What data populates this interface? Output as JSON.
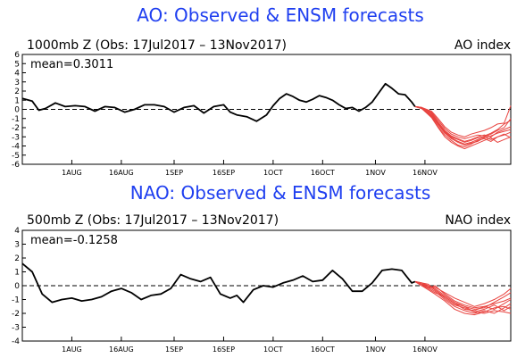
{
  "chart_data": [
    {
      "type": "line",
      "title": "AO: Observed & ENSM forecasts",
      "subtitle": "1000mb Z (Obs: 17Jul2017 – 13Nov2017)",
      "index_label": "AO index",
      "mean_label": "mean=0.3011",
      "ylim": [
        -6,
        6
      ],
      "yticks": [
        "6",
        "5",
        "4",
        "3",
        "2",
        "1",
        "0",
        "-1",
        "-2",
        "-3",
        "-4",
        "-5",
        "-6"
      ],
      "xlim": [
        0,
        148
      ],
      "xticks": [
        {
          "label": "1AUG",
          "day": 15
        },
        {
          "label": "16AUG",
          "day": 30
        },
        {
          "label": "1SEP",
          "day": 46
        },
        {
          "label": "16SEP",
          "day": 61
        },
        {
          "label": "1OCT",
          "day": 76
        },
        {
          "label": "16OCT",
          "day": 91
        },
        {
          "label": "1NOV",
          "day": 107
        },
        {
          "label": "16NOV",
          "day": 122
        }
      ],
      "zero_line": "dashed",
      "observed_color": "#000000",
      "forecast_color": "#e8433f",
      "observed": {
        "x": [
          0,
          3,
          5,
          7,
          10,
          13,
          16,
          19,
          22,
          25,
          28,
          31,
          34,
          37,
          40,
          43,
          46,
          49,
          52,
          55,
          58,
          61,
          63,
          65,
          68,
          71,
          74,
          76,
          78,
          80,
          82,
          84,
          86,
          88,
          90,
          92,
          94,
          96,
          98,
          100,
          102,
          104,
          106,
          108,
          110,
          112,
          114,
          116,
          118,
          119
        ],
        "y": [
          1.2,
          0.9,
          -0.1,
          0.1,
          0.7,
          0.3,
          0.4,
          0.3,
          -0.2,
          0.3,
          0.2,
          -0.3,
          0.0,
          0.5,
          0.5,
          0.3,
          -0.3,
          0.2,
          0.4,
          -0.4,
          0.3,
          0.5,
          -0.3,
          -0.6,
          -0.8,
          -1.3,
          -0.6,
          0.4,
          1.2,
          1.7,
          1.4,
          1.0,
          0.8,
          1.1,
          1.5,
          1.3,
          1.0,
          0.5,
          0.1,
          0.2,
          -0.2,
          0.2,
          0.8,
          1.8,
          2.8,
          2.3,
          1.7,
          1.6,
          0.8,
          0.3
        ]
      },
      "forecast_members": [
        {
          "x": [
            119,
            121,
            124,
            126,
            128,
            130,
            132,
            134,
            136,
            138,
            140,
            142,
            144,
            146,
            148
          ],
          "y": [
            0.3,
            0.2,
            -0.4,
            -1.4,
            -2.3,
            -2.9,
            -3.2,
            -3.5,
            -3.3,
            -3.0,
            -2.8,
            -3.0,
            -2.5,
            -2.2,
            -1.9
          ]
        },
        {
          "x": [
            119,
            121,
            124,
            126,
            128,
            130,
            132,
            134,
            136,
            138,
            140,
            142,
            144,
            146,
            148
          ],
          "y": [
            0.3,
            0.1,
            -0.8,
            -1.9,
            -2.8,
            -3.4,
            -3.9,
            -4.1,
            -3.8,
            -3.4,
            -3.2,
            -3.5,
            -3.0,
            -2.8,
            -2.5
          ]
        },
        {
          "x": [
            119,
            121,
            124,
            126,
            128,
            130,
            132,
            134,
            136,
            138,
            140,
            142,
            144,
            146,
            148
          ],
          "y": [
            0.3,
            0.2,
            -0.2,
            -1.0,
            -1.9,
            -2.5,
            -2.8,
            -3.0,
            -2.7,
            -2.5,
            -2.3,
            -2.0,
            -1.6,
            -1.5,
            0.4
          ]
        },
        {
          "x": [
            119,
            121,
            124,
            126,
            128,
            130,
            132,
            134,
            136,
            138,
            140,
            142,
            144,
            146,
            148
          ],
          "y": [
            0.3,
            0.1,
            -0.6,
            -1.6,
            -2.5,
            -3.1,
            -3.5,
            -3.8,
            -3.6,
            -3.3,
            -3.0,
            -3.3,
            -3.0,
            -2.7,
            -3.1
          ]
        },
        {
          "x": [
            119,
            121,
            124,
            126,
            128,
            130,
            132,
            134,
            136,
            138,
            140,
            142,
            144,
            146,
            148
          ],
          "y": [
            0.3,
            0.2,
            -0.3,
            -1.2,
            -2.1,
            -2.7,
            -3.0,
            -3.2,
            -3.0,
            -2.8,
            -2.9,
            -2.6,
            -2.2,
            -1.6,
            -1.2
          ]
        },
        {
          "x": [
            119,
            121,
            124,
            126,
            128,
            130,
            132,
            134,
            136,
            138,
            140,
            142,
            144,
            146,
            148
          ],
          "y": [
            0.3,
            0.1,
            -0.9,
            -2.0,
            -3.0,
            -3.6,
            -4.0,
            -4.3,
            -4.0,
            -3.7,
            -3.4,
            -3.1,
            -3.6,
            -3.3,
            -3.0
          ]
        },
        {
          "x": [
            119,
            121,
            124,
            126,
            128,
            130,
            132,
            134,
            136,
            138,
            140,
            142,
            144,
            146,
            148
          ],
          "y": [
            0.3,
            0.2,
            -0.5,
            -1.5,
            -2.4,
            -3.0,
            -3.3,
            -3.6,
            -3.4,
            -3.1,
            -3.0,
            -2.7,
            -2.3,
            -2.0,
            -1.0
          ]
        },
        {
          "x": [
            119,
            121,
            124,
            126,
            128,
            130,
            132,
            134,
            136,
            138,
            140,
            142,
            144,
            146,
            148
          ],
          "y": [
            0.3,
            0.1,
            -0.7,
            -1.7,
            -2.6,
            -3.2,
            -3.6,
            -3.9,
            -3.7,
            -3.5,
            -3.1,
            -2.9,
            -2.6,
            -2.4,
            -2.2
          ]
        }
      ]
    },
    {
      "type": "line",
      "title": "NAO: Observed & ENSM forecasts",
      "subtitle": "500mb Z (Obs: 17Jul2017 – 13Nov2017)",
      "index_label": "NAO index",
      "mean_label": "mean=-0.1258",
      "ylim": [
        -4,
        4
      ],
      "yticks": [
        "4",
        "3",
        "2",
        "1",
        "0",
        "-1",
        "-2",
        "-3",
        "-4"
      ],
      "xlim": [
        0,
        148
      ],
      "xticks": [
        {
          "label": "1AUG",
          "day": 15
        },
        {
          "label": "16AUG",
          "day": 30
        },
        {
          "label": "1SEP",
          "day": 46
        },
        {
          "label": "16SEP",
          "day": 61
        },
        {
          "label": "1OCT",
          "day": 76
        },
        {
          "label": "16OCT",
          "day": 91
        },
        {
          "label": "1NOV",
          "day": 107
        },
        {
          "label": "16NOV",
          "day": 122
        }
      ],
      "zero_line": "dashed",
      "observed_color": "#000000",
      "forecast_color": "#e8433f",
      "observed": {
        "x": [
          0,
          3,
          6,
          9,
          12,
          15,
          18,
          21,
          24,
          27,
          30,
          33,
          36,
          39,
          42,
          45,
          48,
          51,
          54,
          57,
          60,
          63,
          65,
          67,
          70,
          73,
          76,
          79,
          82,
          85,
          88,
          91,
          94,
          97,
          100,
          103,
          106,
          109,
          112,
          115,
          118,
          119
        ],
        "y": [
          1.6,
          1.0,
          -0.6,
          -1.2,
          -1.0,
          -0.9,
          -1.1,
          -1.0,
          -0.8,
          -0.4,
          -0.2,
          -0.5,
          -1.0,
          -0.7,
          -0.6,
          -0.2,
          0.8,
          0.5,
          0.3,
          0.6,
          -0.6,
          -0.9,
          -0.7,
          -1.2,
          -0.3,
          0.0,
          -0.1,
          0.2,
          0.4,
          0.7,
          0.3,
          0.4,
          1.1,
          0.5,
          -0.4,
          -0.4,
          0.2,
          1.1,
          1.2,
          1.1,
          0.2,
          0.3
        ]
      },
      "forecast_members": [
        {
          "x": [
            119,
            121,
            123,
            125,
            128,
            131,
            134,
            137,
            140,
            143,
            146,
            148
          ],
          "y": [
            0.3,
            0.1,
            -0.2,
            0.0,
            -0.6,
            -1.1,
            -1.4,
            -1.6,
            -1.5,
            -1.7,
            -1.3,
            -1.0
          ]
        },
        {
          "x": [
            119,
            121,
            123,
            125,
            128,
            131,
            134,
            137,
            140,
            143,
            146,
            148
          ],
          "y": [
            0.3,
            0.2,
            0.1,
            -0.3,
            -0.9,
            -1.4,
            -1.6,
            -1.9,
            -1.7,
            -1.4,
            -1.8,
            -1.5
          ]
        },
        {
          "x": [
            119,
            121,
            123,
            125,
            128,
            131,
            134,
            137,
            140,
            143,
            146,
            148
          ],
          "y": [
            0.3,
            0.0,
            -0.3,
            -0.6,
            -1.1,
            -1.7,
            -2.0,
            -2.1,
            -1.9,
            -1.6,
            -1.5,
            -1.7
          ]
        },
        {
          "x": [
            119,
            121,
            123,
            125,
            128,
            131,
            134,
            137,
            140,
            143,
            146,
            148
          ],
          "y": [
            0.3,
            0.2,
            0.0,
            -0.2,
            -0.7,
            -1.2,
            -1.5,
            -1.7,
            -1.6,
            -1.2,
            -0.8,
            -0.5
          ]
        },
        {
          "x": [
            119,
            121,
            123,
            125,
            128,
            131,
            134,
            137,
            140,
            143,
            146,
            148
          ],
          "y": [
            0.3,
            0.1,
            -0.1,
            -0.4,
            -1.0,
            -1.5,
            -1.8,
            -2.0,
            -1.8,
            -2.0,
            -1.6,
            -1.3
          ]
        },
        {
          "x": [
            119,
            121,
            123,
            125,
            128,
            131,
            134,
            137,
            140,
            143,
            146,
            148
          ],
          "y": [
            0.3,
            0.0,
            -0.2,
            -0.5,
            -0.8,
            -1.3,
            -1.7,
            -1.8,
            -1.5,
            -1.3,
            -1.1,
            -0.9
          ]
        },
        {
          "x": [
            119,
            121,
            123,
            125,
            128,
            131,
            134,
            137,
            140,
            143,
            146,
            148
          ],
          "y": [
            0.3,
            0.2,
            -0.1,
            -0.1,
            -0.5,
            -0.9,
            -1.2,
            -1.5,
            -1.3,
            -1.0,
            -0.6,
            -0.2
          ]
        },
        {
          "x": [
            119,
            121,
            123,
            125,
            128,
            131,
            134,
            137,
            140,
            143,
            146,
            148
          ],
          "y": [
            0.3,
            0.1,
            0.0,
            -0.3,
            -0.8,
            -1.3,
            -1.5,
            -1.9,
            -2.0,
            -1.8,
            -1.9,
            -2.0
          ]
        }
      ]
    }
  ]
}
